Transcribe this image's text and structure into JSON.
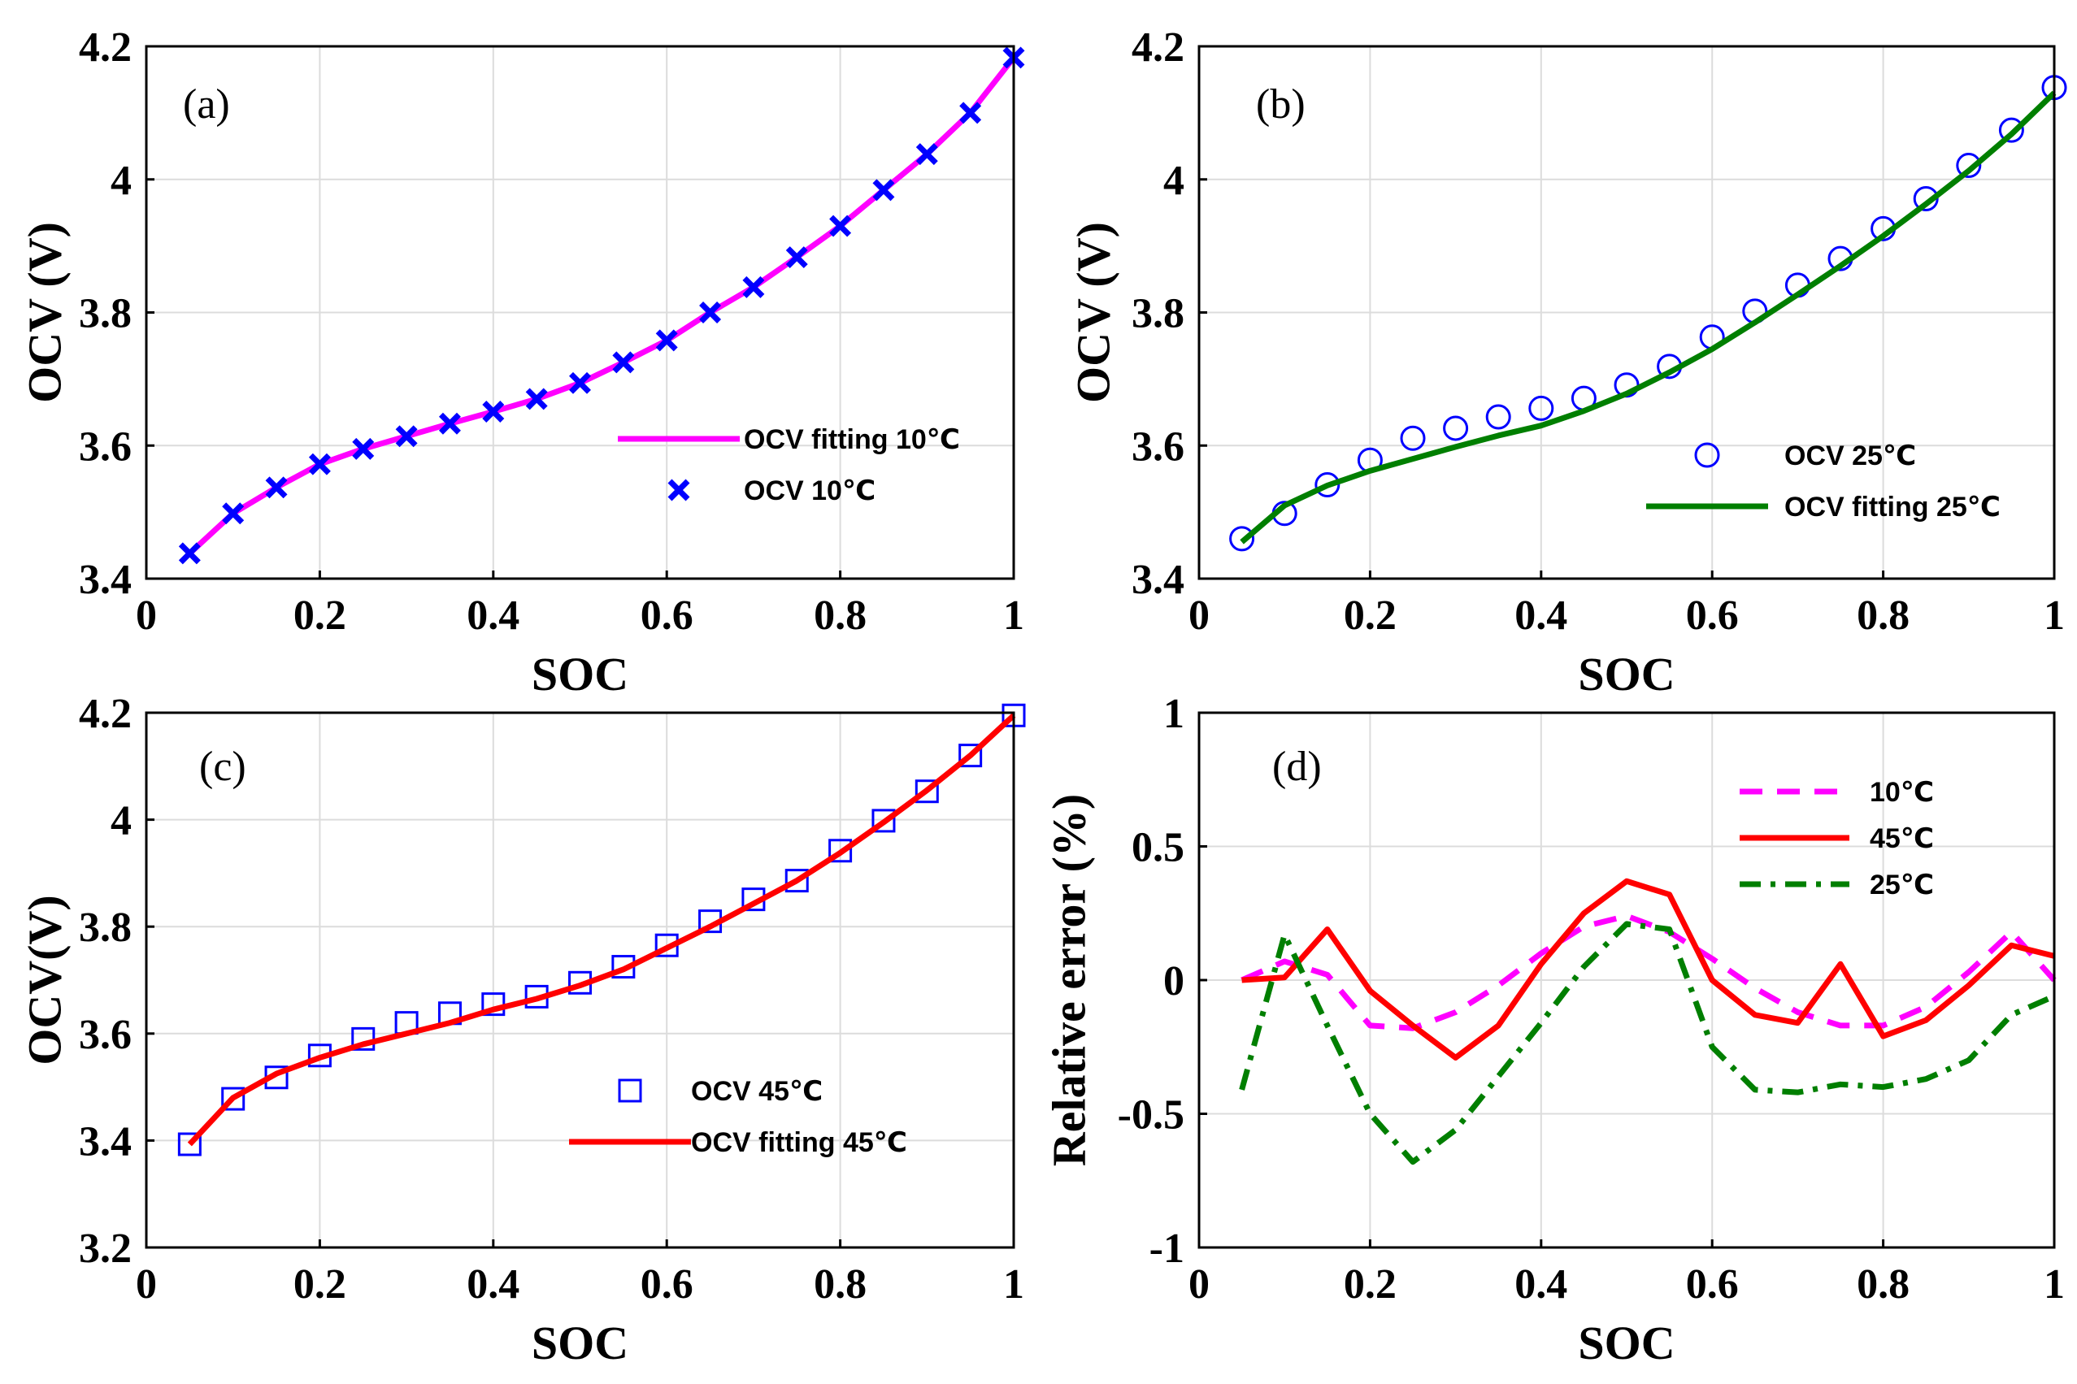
{
  "chart_data": [
    {
      "panel": "(a)",
      "type": "line",
      "xlabel": "SOC",
      "ylabel": "OCV (V)",
      "xlim": [
        0,
        1
      ],
      "ylim": [
        3.4,
        4.2
      ],
      "xticks": [
        0,
        0.2,
        0.4,
        0.6,
        0.8,
        1
      ],
      "xtick_labels": [
        "0",
        "0.2",
        "0.4",
        "0.6",
        "0.8",
        "1"
      ],
      "yticks": [
        3.4,
        3.6,
        3.8,
        4.0,
        4.2
      ],
      "ytick_labels": [
        "3.4",
        "3.6",
        "3.8",
        "4",
        "4.2"
      ],
      "grid": true,
      "legend_position": "center-right",
      "series": [
        {
          "name": "OCV fitting 10℃",
          "style": "line",
          "color": "#ff00ff",
          "x": [
            0.05,
            0.1,
            0.15,
            0.2,
            0.25,
            0.3,
            0.35,
            0.4,
            0.45,
            0.5,
            0.55,
            0.6,
            0.65,
            0.7,
            0.75,
            0.8,
            0.85,
            0.9,
            0.95,
            1.0
          ],
          "y": [
            3.438,
            3.498,
            3.537,
            3.572,
            3.595,
            3.614,
            3.633,
            3.651,
            3.67,
            3.694,
            3.725,
            3.758,
            3.8,
            3.838,
            3.883,
            3.93,
            3.984,
            4.038,
            4.1,
            4.183
          ]
        },
        {
          "name": "OCV 10℃",
          "style": "marker",
          "marker": "x",
          "color": "#0000ff",
          "x": [
            0.05,
            0.1,
            0.15,
            0.2,
            0.25,
            0.3,
            0.35,
            0.4,
            0.45,
            0.5,
            0.55,
            0.6,
            0.65,
            0.7,
            0.75,
            0.8,
            0.85,
            0.9,
            0.95,
            1.0
          ],
          "y": [
            3.438,
            3.498,
            3.537,
            3.572,
            3.595,
            3.614,
            3.633,
            3.651,
            3.67,
            3.694,
            3.725,
            3.758,
            3.8,
            3.838,
            3.883,
            3.93,
            3.984,
            4.038,
            4.1,
            4.183
          ]
        }
      ]
    },
    {
      "panel": "(b)",
      "type": "line",
      "xlabel": "SOC",
      "ylabel": "OCV (V)",
      "xlim": [
        0,
        1
      ],
      "ylim": [
        3.4,
        4.2
      ],
      "xticks": [
        0,
        0.2,
        0.4,
        0.6,
        0.8,
        1
      ],
      "xtick_labels": [
        "0",
        "0.2",
        "0.4",
        "0.6",
        "0.8",
        "1"
      ],
      "yticks": [
        3.4,
        3.6,
        3.8,
        4.0,
        4.2
      ],
      "ytick_labels": [
        "3.4",
        "3.6",
        "3.8",
        "4",
        "4.2"
      ],
      "grid": true,
      "legend_position": "center-right",
      "series": [
        {
          "name": "OCV 25℃",
          "style": "marker",
          "marker": "o",
          "color": "#0000ff",
          "x": [
            0.05,
            0.1,
            0.15,
            0.2,
            0.25,
            0.3,
            0.35,
            0.4,
            0.45,
            0.5,
            0.55,
            0.6,
            0.65,
            0.7,
            0.75,
            0.8,
            0.85,
            0.9,
            0.95,
            1.0
          ],
          "y": [
            3.46,
            3.498,
            3.541,
            3.578,
            3.611,
            3.626,
            3.643,
            3.656,
            3.671,
            3.691,
            3.719,
            3.763,
            3.802,
            3.841,
            3.881,
            3.926,
            3.971,
            4.021,
            4.074,
            4.138
          ]
        },
        {
          "name": "OCV fitting 25℃",
          "style": "line",
          "color": "#007f00",
          "x": [
            0.05,
            0.1,
            0.15,
            0.2,
            0.25,
            0.3,
            0.35,
            0.4,
            0.45,
            0.5,
            0.55,
            0.6,
            0.65,
            0.7,
            0.75,
            0.8,
            0.85,
            0.9,
            0.95,
            1.0
          ],
          "y": [
            3.455,
            3.51,
            3.54,
            3.562,
            3.58,
            3.598,
            3.615,
            3.63,
            3.652,
            3.678,
            3.71,
            3.745,
            3.785,
            3.827,
            3.87,
            3.915,
            3.963,
            4.013,
            4.068,
            4.13
          ]
        }
      ]
    },
    {
      "panel": "(c)",
      "type": "line",
      "xlabel": "SOC",
      "ylabel": "OCV(V)",
      "xlim": [
        0,
        1
      ],
      "ylim": [
        3.2,
        4.2
      ],
      "xticks": [
        0,
        0.2,
        0.4,
        0.6,
        0.8,
        1
      ],
      "xtick_labels": [
        "0",
        "0.2",
        "0.4",
        "0.6",
        "0.8",
        "1"
      ],
      "yticks": [
        3.2,
        3.4,
        3.6,
        3.8,
        4.0,
        4.2
      ],
      "ytick_labels": [
        "3.2",
        "3.4",
        "3.6",
        "3.8",
        "4",
        "4.2"
      ],
      "grid": true,
      "legend_position": "center-right",
      "series": [
        {
          "name": "OCV  45℃",
          "style": "marker",
          "marker": "s",
          "color": "#0000ff",
          "x": [
            0.05,
            0.1,
            0.15,
            0.2,
            0.25,
            0.3,
            0.35,
            0.4,
            0.45,
            0.5,
            0.55,
            0.6,
            0.65,
            0.7,
            0.75,
            0.8,
            0.85,
            0.9,
            0.95,
            1.0
          ],
          "y": [
            3.393,
            3.478,
            3.518,
            3.559,
            3.59,
            3.62,
            3.638,
            3.655,
            3.669,
            3.695,
            3.725,
            3.765,
            3.81,
            3.851,
            3.886,
            3.942,
            3.998,
            4.053,
            4.12,
            4.195
          ]
        },
        {
          "name": "OCV fitting 45℃",
          "style": "line",
          "color": "#ff0000",
          "x": [
            0.05,
            0.1,
            0.15,
            0.2,
            0.25,
            0.3,
            0.35,
            0.4,
            0.45,
            0.5,
            0.55,
            0.6,
            0.65,
            0.7,
            0.75,
            0.8,
            0.85,
            0.9,
            0.95,
            1.0
          ],
          "y": [
            3.393,
            3.48,
            3.525,
            3.555,
            3.58,
            3.6,
            3.62,
            3.645,
            3.665,
            3.69,
            3.72,
            3.76,
            3.8,
            3.843,
            3.886,
            3.938,
            3.995,
            4.055,
            4.12,
            4.195
          ]
        }
      ]
    },
    {
      "panel": "(d)",
      "type": "line",
      "xlabel": "SOC",
      "ylabel": "Relative error (%)",
      "xlim": [
        0,
        1
      ],
      "ylim": [
        -1,
        1
      ],
      "xticks": [
        0,
        0.2,
        0.4,
        0.6,
        0.8,
        1
      ],
      "xtick_labels": [
        "0",
        "0.2",
        "0.4",
        "0.6",
        "0.8",
        "1"
      ],
      "yticks": [
        -1,
        -0.5,
        0,
        0.5,
        1
      ],
      "ytick_labels": [
        "-1",
        "-0.5",
        "0",
        "0.5",
        "1"
      ],
      "grid": true,
      "legend_position": "top-right",
      "series": [
        {
          "name": "10℃",
          "style": "dashed",
          "color": "#ff00ff",
          "x": [
            0.05,
            0.1,
            0.15,
            0.2,
            0.25,
            0.3,
            0.35,
            0.4,
            0.45,
            0.5,
            0.55,
            0.6,
            0.65,
            0.7,
            0.75,
            0.8,
            0.85,
            0.9,
            0.95,
            1.0
          ],
          "y": [
            0.0,
            0.07,
            0.02,
            -0.17,
            -0.18,
            -0.12,
            -0.02,
            0.1,
            0.2,
            0.24,
            0.18,
            0.08,
            -0.03,
            -0.12,
            -0.17,
            -0.17,
            -0.1,
            0.03,
            0.18,
            0.0
          ]
        },
        {
          "name": "45℃",
          "style": "solid",
          "color": "#ff0000",
          "x": [
            0.05,
            0.1,
            0.15,
            0.2,
            0.25,
            0.3,
            0.35,
            0.4,
            0.45,
            0.5,
            0.55,
            0.6,
            0.65,
            0.7,
            0.75,
            0.8,
            0.85,
            0.9,
            0.95,
            1.0
          ],
          "y": [
            0.0,
            0.01,
            0.19,
            -0.04,
            -0.17,
            -0.29,
            -0.17,
            0.06,
            0.25,
            0.37,
            0.32,
            0.0,
            -0.13,
            -0.16,
            0.06,
            -0.21,
            -0.15,
            -0.02,
            0.13,
            0.09
          ]
        },
        {
          "name": "25℃",
          "style": "dashdot",
          "color": "#007f00",
          "x": [
            0.05,
            0.1,
            0.15,
            0.2,
            0.25,
            0.3,
            0.35,
            0.4,
            0.45,
            0.5,
            0.55,
            0.6,
            0.65,
            0.7,
            0.75,
            0.8,
            0.85,
            0.9,
            0.95,
            1.0
          ],
          "y": [
            -0.41,
            0.17,
            -0.17,
            -0.5,
            -0.68,
            -0.56,
            -0.36,
            -0.16,
            0.05,
            0.21,
            0.19,
            -0.25,
            -0.41,
            -0.42,
            -0.39,
            -0.4,
            -0.37,
            -0.3,
            -0.13,
            -0.06
          ]
        }
      ]
    }
  ]
}
